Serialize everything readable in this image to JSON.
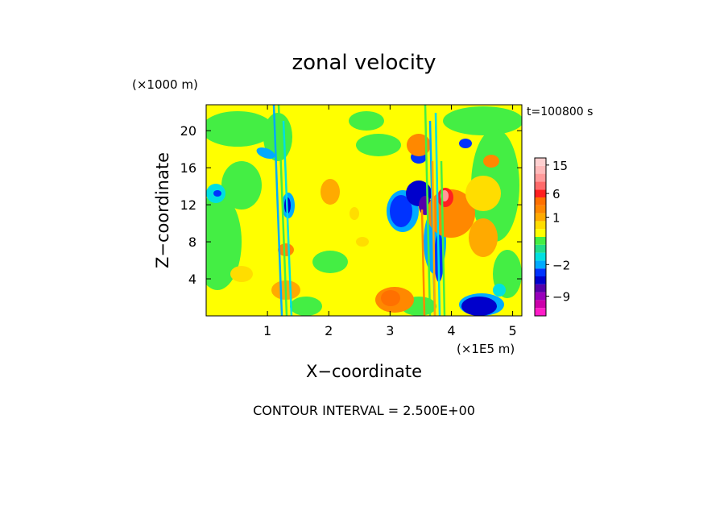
{
  "chart_data": {
    "type": "heatmap",
    "title": "zonal velocity",
    "time_label": "t=100800 s",
    "xlabel": "X−coordinate",
    "ylabel": "Z−coordinate",
    "x_unit": "(×1E5 m)",
    "y_unit": "(×1000 m)",
    "xlim": [
      0,
      5.15
    ],
    "ylim": [
      0,
      22.8
    ],
    "x_ticks": [
      {
        "value": 1,
        "label": "1"
      },
      {
        "value": 2,
        "label": "2"
      },
      {
        "value": 3,
        "label": "3"
      },
      {
        "value": 4,
        "label": "4"
      },
      {
        "value": 5,
        "label": "5"
      }
    ],
    "y_ticks": [
      {
        "value": 4,
        "label": "4"
      },
      {
        "value": 8,
        "label": "8"
      },
      {
        "value": 12,
        "label": "12"
      },
      {
        "value": 16,
        "label": "16"
      },
      {
        "value": 20,
        "label": "20"
      }
    ],
    "contour_interval_label": "CONTOUR INTERVAL = 2.500E+00",
    "colorbar": {
      "levels": [
        {
          "value": -14,
          "color": "#ff1cc8"
        },
        {
          "value": -11.5,
          "color": "#cc00aa"
        },
        {
          "value": -9,
          "color": "#9900bb"
        },
        {
          "value": -6.5,
          "color": "#5500aa"
        },
        {
          "value": -4,
          "color": "#0000cc"
        },
        {
          "value": -3,
          "color": "#0033ff"
        },
        {
          "value": -2,
          "color": "#00aaff"
        },
        {
          "value": -1.5,
          "color": "#00e0e0"
        },
        {
          "value": -1,
          "color": "#22dd88"
        },
        {
          "value": -0.5,
          "color": "#44ee44"
        },
        {
          "value": 0,
          "color": "#ffff00"
        },
        {
          "value": 0.5,
          "color": "#ffdd00"
        },
        {
          "value": 1,
          "color": "#ffaa00"
        },
        {
          "value": 1.5,
          "color": "#ff8800"
        },
        {
          "value": 3.5,
          "color": "#ff7000"
        },
        {
          "value": 6,
          "color": "#ff2020"
        },
        {
          "value": 8.5,
          "color": "#ff6a6a"
        },
        {
          "value": 11,
          "color": "#ff9a9a"
        },
        {
          "value": 13.5,
          "color": "#ffbaba"
        },
        {
          "value": 16,
          "color": "#ffd0d0"
        }
      ],
      "tick_labels": [
        {
          "value": 15,
          "label": "15"
        },
        {
          "value": 6,
          "label": "6"
        },
        {
          "value": 1,
          "label": "1"
        },
        {
          "value": -2,
          "label": "−2"
        },
        {
          "value": -9,
          "label": "−9"
        }
      ]
    },
    "field_background_color": "#ffff00"
  }
}
